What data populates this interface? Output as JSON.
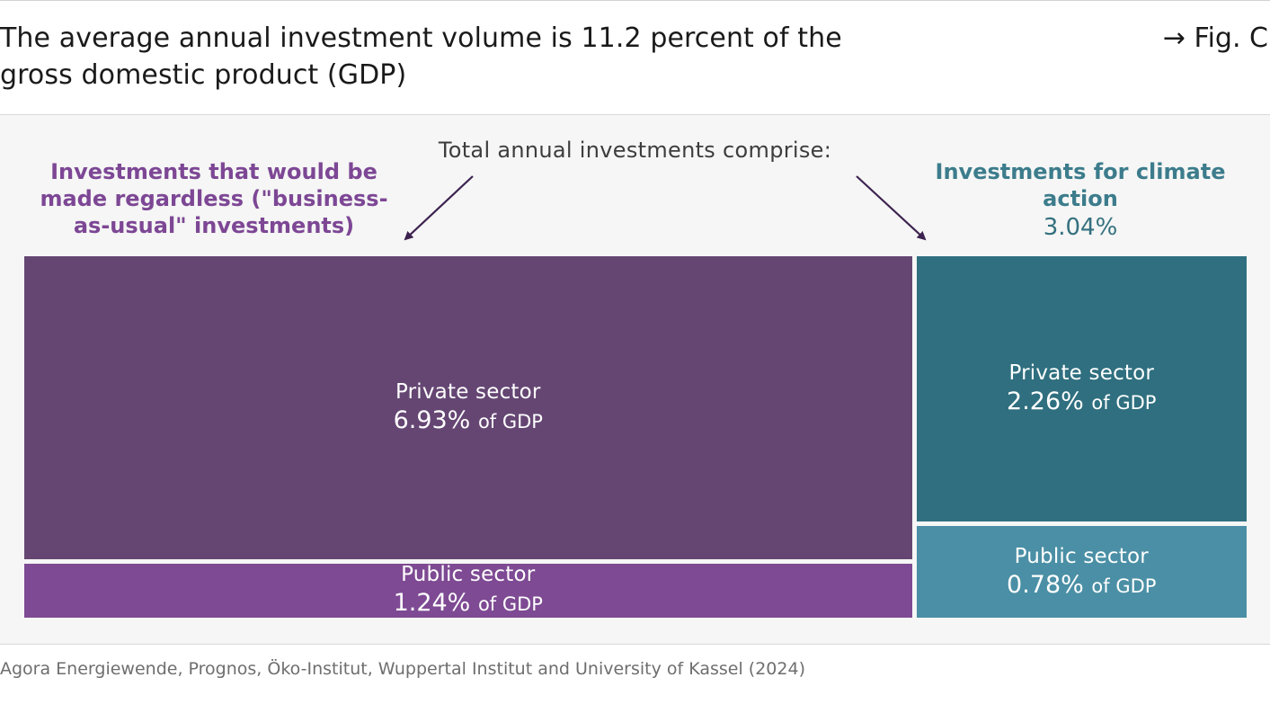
{
  "header": {
    "title": "The average annual investment volume is 11.2 percent of the gross domestic product (GDP)",
    "fig_ref": "→ Fig. C"
  },
  "annotation": "Total annual investments comprise:",
  "footer": {
    "source": "Agora Energiewende, Prognos, Öko-Institut, Wuppertal Institut and University of Kassel (2024)"
  },
  "chart_data": {
    "type": "treemap",
    "title": "The average annual investment volume is 11.2 percent of the gross domestic product (GDP)",
    "unit": "of GDP",
    "groups": [
      {
        "name": "Investments that would be made regardless (\"business-as-usual\" investments)",
        "color": "#7d4795",
        "total_label": "",
        "tiles": [
          {
            "label": "Private sector",
            "value": 6.93,
            "value_text": "6.93%",
            "unit": "of GDP",
            "color": "#654673"
          },
          {
            "label": "Public sector",
            "value": 1.24,
            "value_text": "1.24%",
            "unit": "of GDP",
            "color": "#7e4a93"
          }
        ]
      },
      {
        "name": "Investments for climate action",
        "color": "#3c7c8c",
        "total_label": "3.04%",
        "tiles": [
          {
            "label": "Private sector",
            "value": 2.26,
            "value_text": "2.26%",
            "unit": "of GDP",
            "color": "#2f6f7f"
          },
          {
            "label": "Public sector",
            "value": 0.78,
            "value_text": "0.78%",
            "unit": "of GDP",
            "color": "#4a8fa5"
          }
        ]
      }
    ]
  }
}
